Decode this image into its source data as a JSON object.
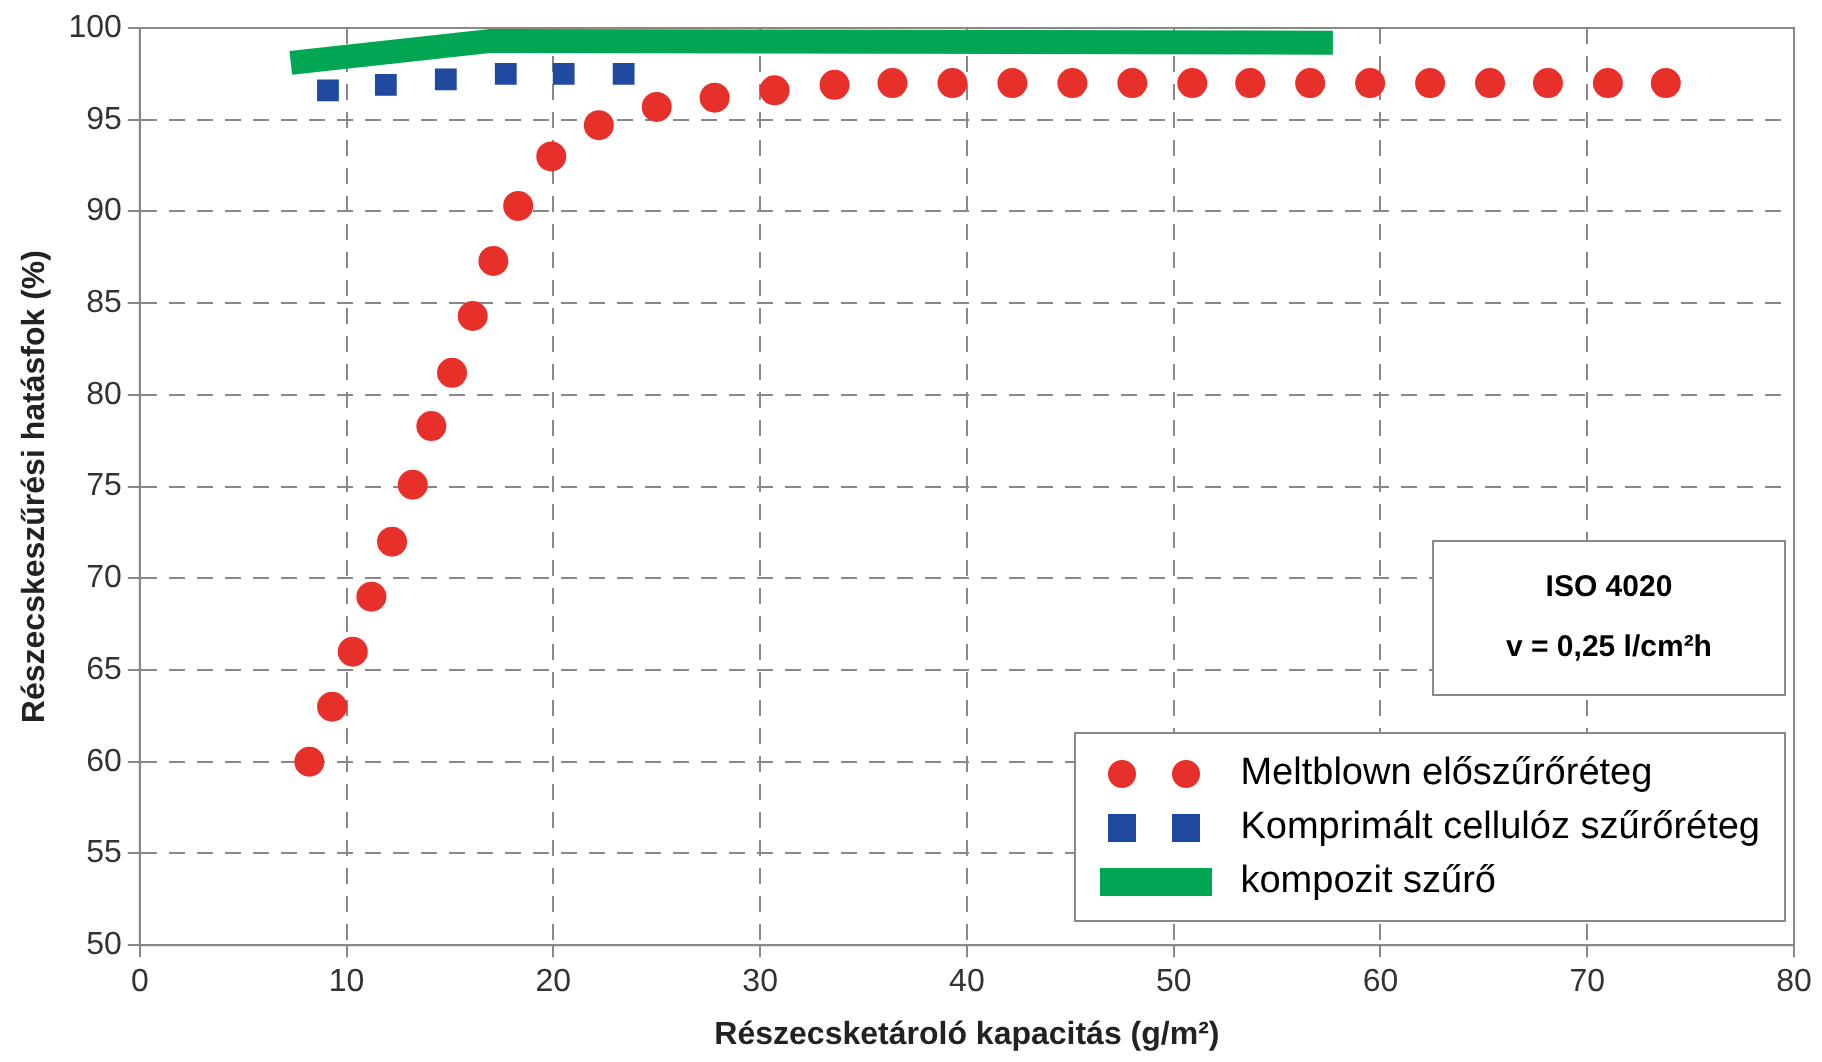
{
  "chart_data": {
    "type": "scatter",
    "xlabel": "Részecsketároló kapacitás (g/m²)",
    "ylabel": "Részecskeszűrési hatásfok (%)",
    "xlim": [
      0,
      80
    ],
    "xticks": [
      0,
      10,
      20,
      30,
      40,
      50,
      60,
      70,
      80
    ],
    "ylim": [
      50,
      100
    ],
    "yticks": [
      50,
      55,
      60,
      65,
      70,
      75,
      80,
      85,
      90,
      95,
      100
    ],
    "grid": true,
    "legend": "bottom right",
    "annotations": [
      "ISO 4020",
      "v = 0,25 l/cm²h"
    ],
    "series": [
      {
        "name": "Meltblown előszűrőréteg",
        "marker": "circle",
        "color": "#e8302a",
        "x": [
          8.2,
          9.3,
          10.3,
          11.2,
          12.2,
          13.2,
          14.1,
          15.1,
          16.1,
          17.1,
          18.3,
          19.9,
          22.2,
          25.0,
          27.8,
          30.7,
          33.6,
          36.4,
          39.3,
          42.2,
          45.1,
          48.0,
          50.9,
          53.7,
          56.6,
          59.5,
          62.4,
          65.3,
          68.1,
          71.0,
          73.8
        ],
        "values": [
          60,
          63,
          66,
          69,
          72,
          75.1,
          78.3,
          81.2,
          84.3,
          87.3,
          90.3,
          93,
          94.7,
          95.7,
          96.2,
          96.6,
          96.9,
          97,
          97,
          97,
          97,
          97,
          97,
          97,
          97,
          97,
          97,
          97,
          97,
          97,
          97
        ]
      },
      {
        "name": "Komprimált cellulóz szűrőréteg",
        "marker": "square",
        "color": "#1f4aa0",
        "x": [
          9.1,
          11.9,
          14.8,
          17.7,
          20.5,
          23.4
        ],
        "values": [
          96.6,
          96.9,
          97.2,
          97.5,
          97.5,
          97.5
        ]
      },
      {
        "name": "kompozit szűrő",
        "type": "line",
        "marker": "none",
        "color": "#00a651",
        "x": [
          7.3,
          17,
          57.7
        ],
        "values": [
          98.1,
          99.3,
          99.2
        ]
      }
    ]
  }
}
